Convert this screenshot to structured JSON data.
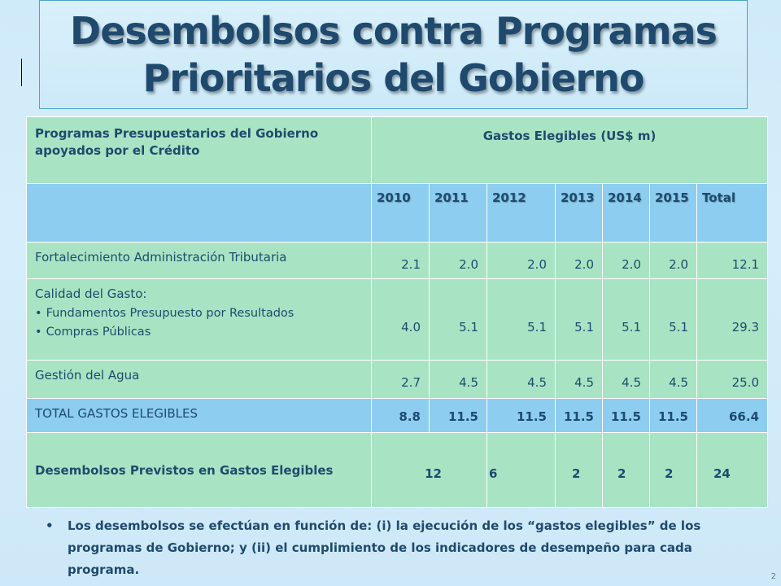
{
  "title": {
    "line1": "Desembolsos contra Programas",
    "line2": "Prioritarios  del Gobierno"
  },
  "table": {
    "header_left": "Programas Presupuestarios del Gobierno apoyados por el Crédito",
    "header_right": "Gastos Elegibles (US$ m)",
    "years": [
      "2010",
      "2011",
      "2012",
      "2013",
      "2014",
      "2015",
      "Total"
    ],
    "rows": [
      {
        "label": "Fortalecimiento Administración Tributaria",
        "values": [
          "2.1",
          "2.0",
          "2.0",
          "2.0",
          "2.0",
          "2.0",
          "12.1"
        ]
      },
      {
        "label": "Calidad del Gasto:",
        "subitems": [
          "Fundamentos  Presupuesto por Resultados",
          "Compras  Públicas"
        ],
        "values": [
          "4.0",
          "5.1",
          "5.1",
          "5.1",
          "5.1",
          "5.1",
          "29.3"
        ]
      },
      {
        "label": "Gestión del Agua",
        "values": [
          "2.7",
          "4.5",
          "4.5",
          "4.5",
          "4.5",
          "4.5",
          "25.0"
        ]
      }
    ],
    "total_row": {
      "label": "TOTAL GASTOS ELEGIBLES",
      "values": [
        "8.8",
        "11.5",
        "11.5",
        "11.5",
        "11.5",
        "11.5",
        "66.4"
      ]
    },
    "disb_row": {
      "label": "Desembolsos Previstos en Gastos Elegibles",
      "values": [
        "12",
        "6",
        "2",
        "2",
        "2",
        "24"
      ]
    }
  },
  "footnote": "Los desembolsos se efectúan en función de: (i) la ejecución de los “gastos elegibles” de los programas de Gobierno; y (ii) el cumplimiento de los indicadores de desempeño para cada programa.",
  "page_number": "2",
  "colors": {
    "green": "#a8e4c3",
    "blue": "#8dcdf0",
    "text": "#1f4a6e"
  }
}
